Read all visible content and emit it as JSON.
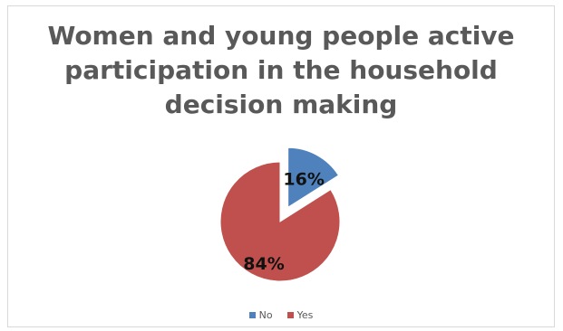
{
  "chart_data": {
    "type": "pie",
    "title": "Women and young people active\nparticipation in the household\ndecision making",
    "categories": [
      "No",
      "Yes"
    ],
    "values": [
      16,
      84
    ],
    "data_labels": [
      "16%",
      "84%"
    ],
    "colors": [
      "#4f81bd",
      "#c0504d"
    ],
    "exploded": [
      "No"
    ],
    "legend_position": "bottom"
  }
}
